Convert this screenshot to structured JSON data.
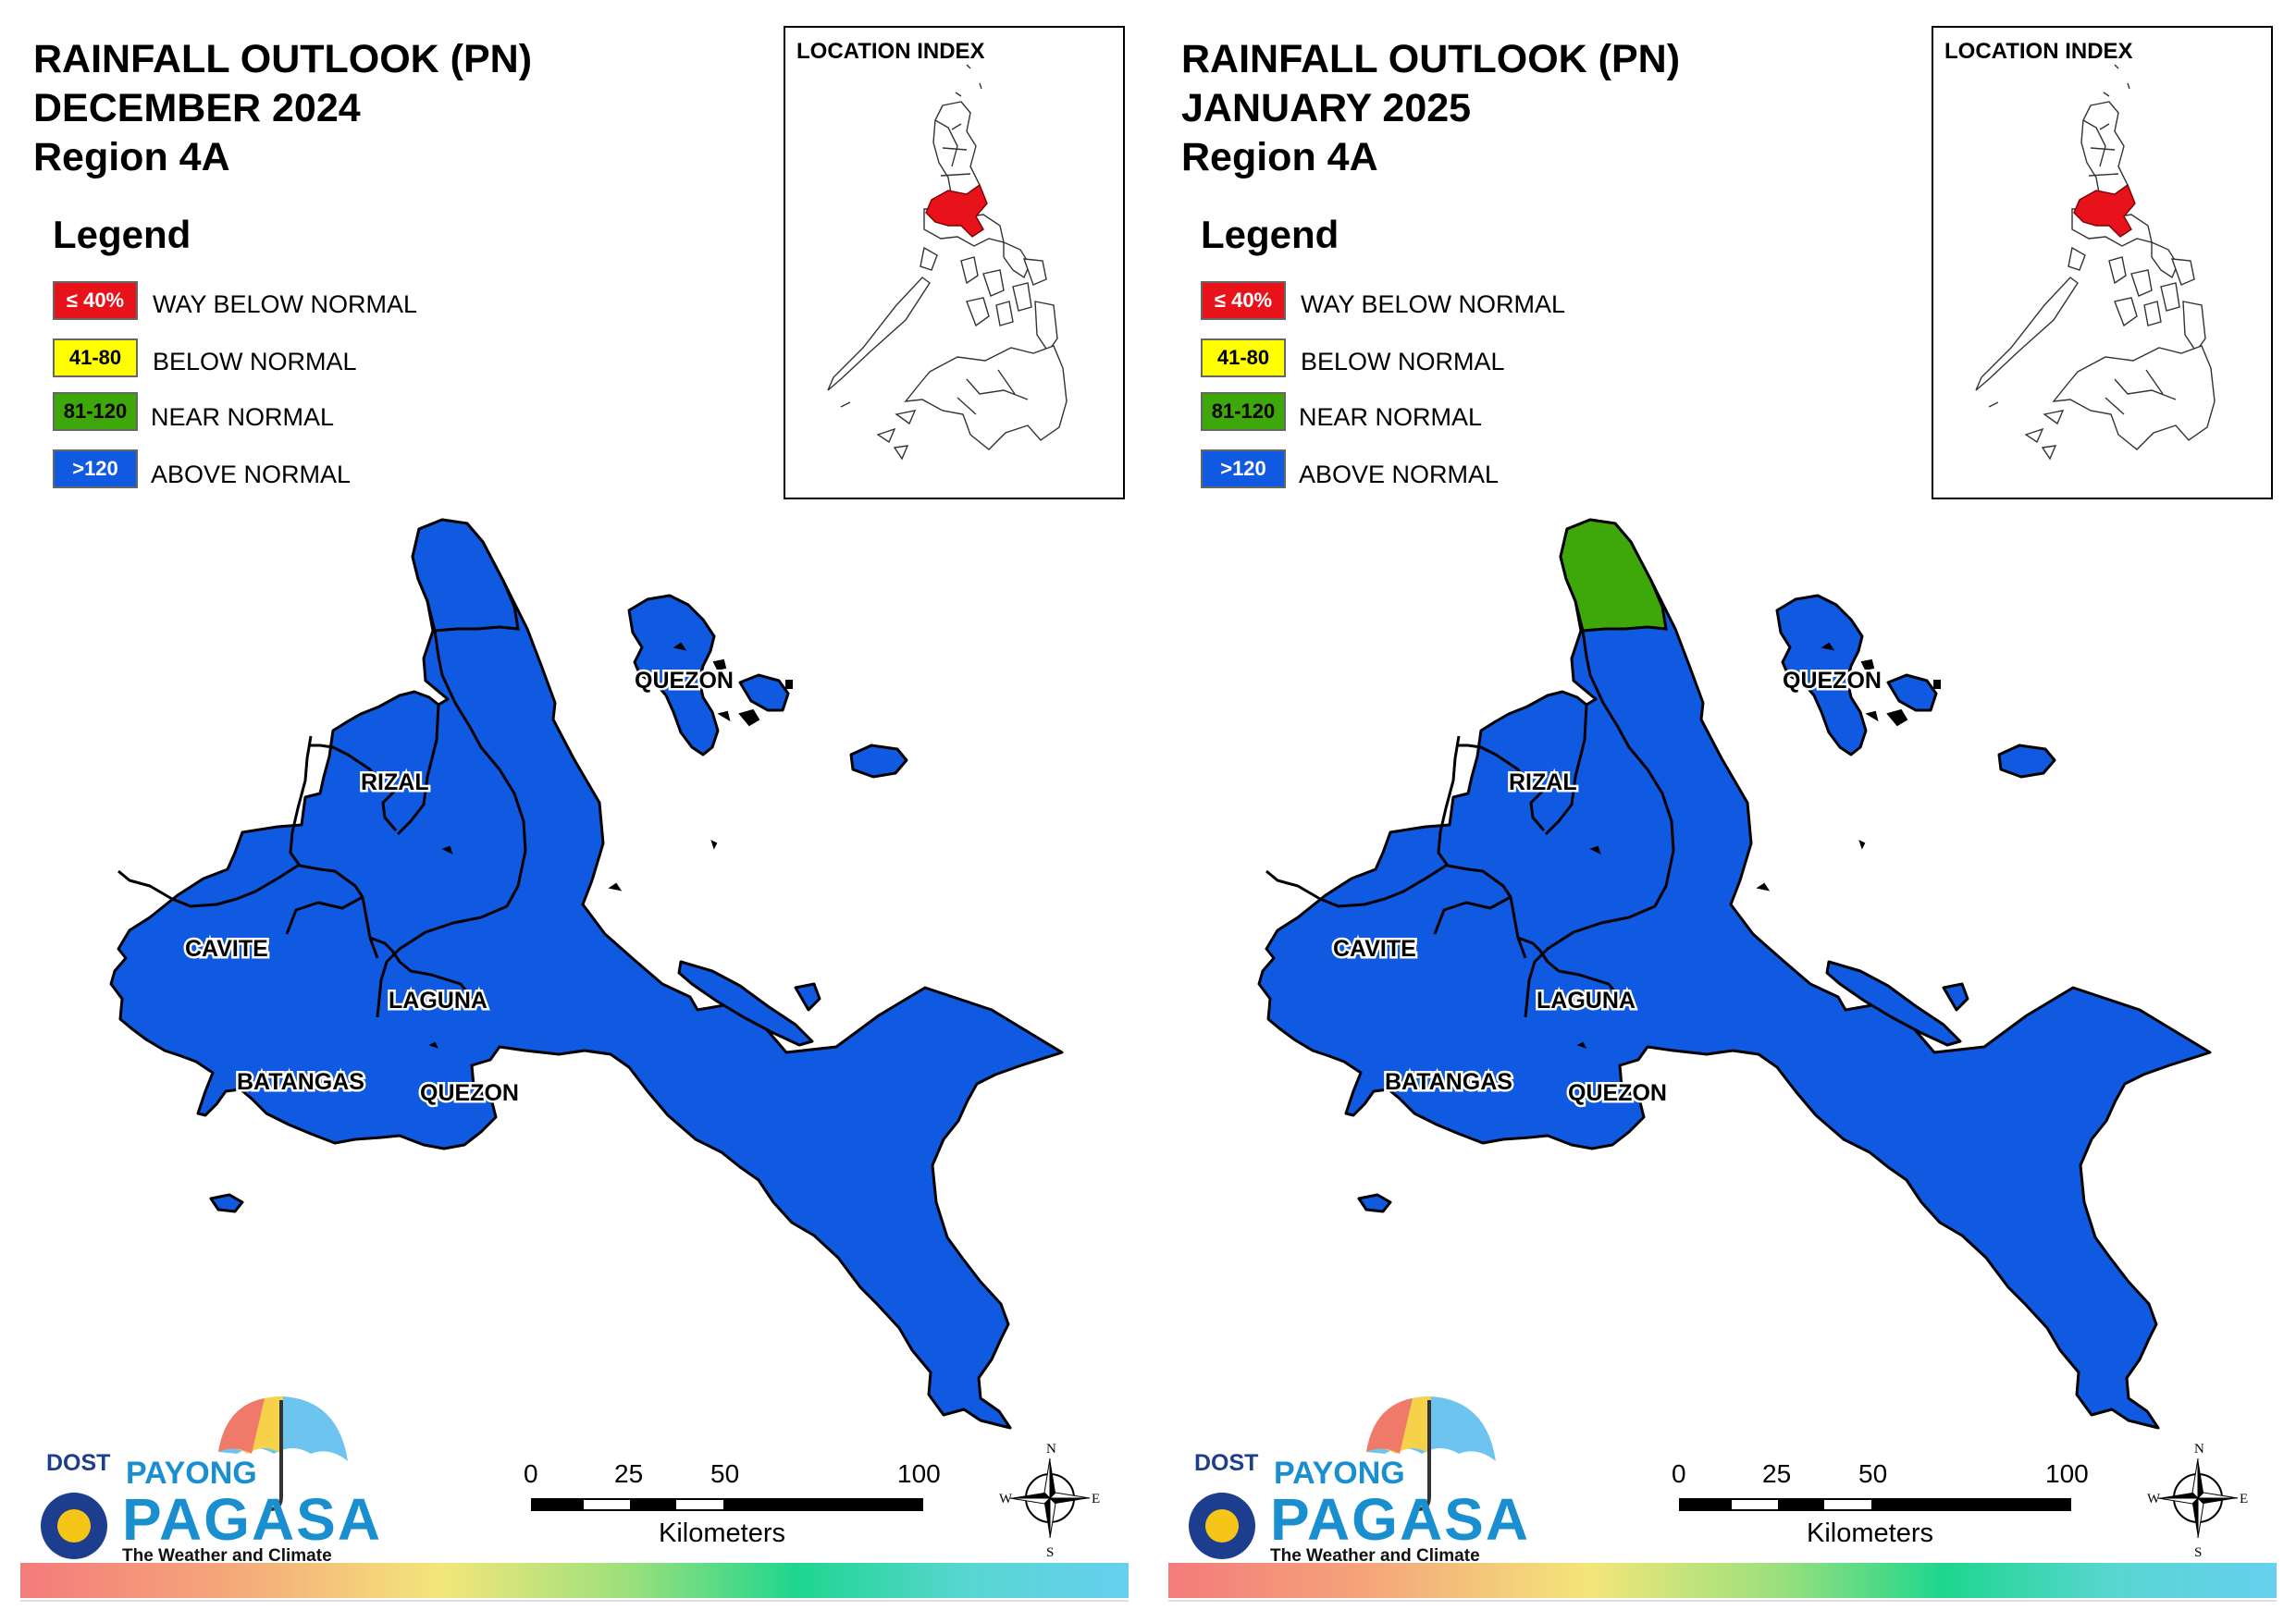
{
  "panels": [
    {
      "title": [
        "RAINFALL OUTLOOK (PN)",
        "DECEMBER 2024",
        "Region 4A"
      ],
      "north_quezon_category": "above_normal"
    },
    {
      "title": [
        "RAINFALL OUTLOOK (PN)",
        "JANUARY 2025",
        "Region 4A"
      ],
      "north_quezon_category": "near_normal"
    }
  ],
  "legend": {
    "title": "Legend",
    "items": [
      {
        "key": "way_below_normal",
        "range": "≤ 40%",
        "label": "WAY BELOW NORMAL",
        "color": "#e8121b",
        "text_color": "#ffffff"
      },
      {
        "key": "below_normal",
        "range": "41-80",
        "label": "BELOW NORMAL",
        "color": "#ffff00",
        "text_color": "#000000"
      },
      {
        "key": "near_normal",
        "range": "81-120",
        "label": "NEAR NORMAL",
        "color": "#3ea80a",
        "text_color": "#000000"
      },
      {
        "key": "above_normal",
        "range": ">120",
        "label": "ABOVE NORMAL",
        "color": "#0f5ae0",
        "text_color": "#ffffff"
      }
    ]
  },
  "location_index": {
    "title": "LOCATION INDEX",
    "highlight_color": "#e8121b"
  },
  "region_labels": [
    "QUEZON",
    "RIZAL",
    "CAVITE",
    "LAGUNA",
    "BATANGAS",
    "QUEZON"
  ],
  "scale_bar": {
    "ticks": [
      "0",
      "25",
      "50",
      "100"
    ],
    "unit": "Kilometers"
  },
  "compass": {
    "n": "N",
    "s": "S",
    "e": "E",
    "w": "W"
  },
  "logo": {
    "dost": "DOST",
    "payong": "PAYONG",
    "pagasa": "PAGASA",
    "tagline": "The Weather and Climate Authority"
  }
}
